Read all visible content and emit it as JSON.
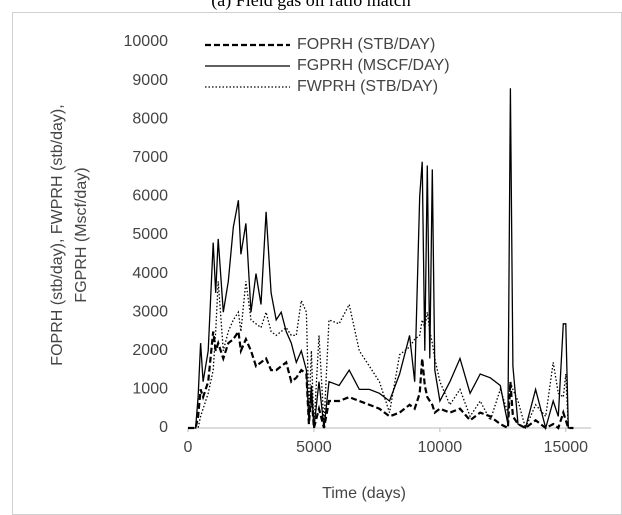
{
  "chart_data": {
    "type": "line",
    "title": "(a)  Field gas oil ratio match",
    "x_label": "Time (days)",
    "y_label": [
      "FOPRH (stb/day), FWPRH (stb/day),",
      "FGPRH (Mscf/day)"
    ],
    "x": [
      0,
      300,
      400,
      500,
      600,
      800,
      1000,
      1100,
      1200,
      1400,
      1600,
      1800,
      2000,
      2100,
      2300,
      2500,
      2700,
      2900,
      3100,
      3300,
      3500,
      3700,
      3900,
      4100,
      4300,
      4500,
      4700,
      4800,
      4900,
      5000,
      5200,
      5400,
      5600,
      6000,
      6400,
      6800,
      7200,
      7600,
      8000,
      8400,
      8800,
      9000,
      9200,
      9300,
      9400,
      9500,
      9600,
      9700,
      9800,
      10000,
      10400,
      10800,
      11200,
      11600,
      12000,
      12400,
      12700,
      12800,
      12900,
      13100,
      13400,
      13800,
      14200,
      14500,
      14700,
      14900,
      15000,
      15100,
      15300
    ],
    "series": [
      {
        "name": "FOPRH  (STB/DAY)",
        "color": "#000000",
        "style": "dashed",
        "values": [
          0,
          0,
          300,
          1000,
          800,
          1200,
          2500,
          2000,
          2200,
          1800,
          2200,
          2300,
          2500,
          2000,
          2300,
          2000,
          1600,
          1700,
          1800,
          1500,
          1500,
          1600,
          1700,
          1200,
          1300,
          1500,
          1400,
          100,
          900,
          0,
          500,
          0,
          700,
          700,
          800,
          700,
          600,
          500,
          300,
          400,
          600,
          500,
          900,
          1800,
          1100,
          800,
          700,
          600,
          400,
          500,
          400,
          500,
          200,
          400,
          300,
          100,
          0,
          1200,
          300,
          100,
          0,
          200,
          0,
          100,
          0,
          400,
          200,
          0,
          0
        ]
      },
      {
        "name": "FGPRH  (MSCF/DAY)",
        "color": "#000000",
        "style": "solid",
        "values": [
          0,
          0,
          800,
          2200,
          1200,
          2000,
          4800,
          3500,
          4900,
          3000,
          3800,
          5200,
          5900,
          4500,
          5300,
          3000,
          4000,
          3200,
          5600,
          3500,
          2800,
          3000,
          2500,
          2200,
          1700,
          2000,
          1500,
          200,
          1100,
          0,
          1200,
          0,
          1200,
          1100,
          1500,
          1000,
          1000,
          900,
          700,
          1400,
          2400,
          1200,
          6000,
          6900,
          2000,
          6800,
          1800,
          6700,
          1500,
          700,
          1200,
          1800,
          900,
          1400,
          1300,
          1100,
          100,
          8800,
          1600,
          100,
          0,
          1000,
          0,
          700,
          300,
          2700,
          2700,
          0,
          0
        ]
      },
      {
        "name": "FWPRH  (STB/DAY)",
        "color": "#000000",
        "style": "dotted",
        "values": [
          0,
          0,
          0,
          300,
          500,
          900,
          1500,
          2500,
          3800,
          2000,
          2500,
          2800,
          3000,
          2500,
          3800,
          2800,
          2700,
          2600,
          3000,
          2500,
          2400,
          2500,
          2600,
          2400,
          2400,
          3300,
          3000,
          400,
          2000,
          0,
          2400,
          100,
          2800,
          2700,
          3200,
          2000,
          1600,
          1200,
          400,
          1900,
          2100,
          2300,
          2400,
          2800,
          2600,
          3000,
          2500,
          2200,
          1800,
          1200,
          600,
          1000,
          300,
          700,
          200,
          1000,
          400,
          1200,
          1000,
          700,
          0,
          600,
          300,
          1700,
          900,
          800,
          1400,
          0,
          0
        ]
      }
    ],
    "xlim": [
      0,
      16000
    ],
    "xticks": [
      0,
      5000,
      10000,
      15000
    ],
    "ylim": [
      0,
      10000
    ],
    "yticks": [
      0,
      1000,
      2000,
      3000,
      4000,
      5000,
      6000,
      7000,
      8000,
      9000,
      10000
    ],
    "legend": "upper-left",
    "grid": false
  }
}
